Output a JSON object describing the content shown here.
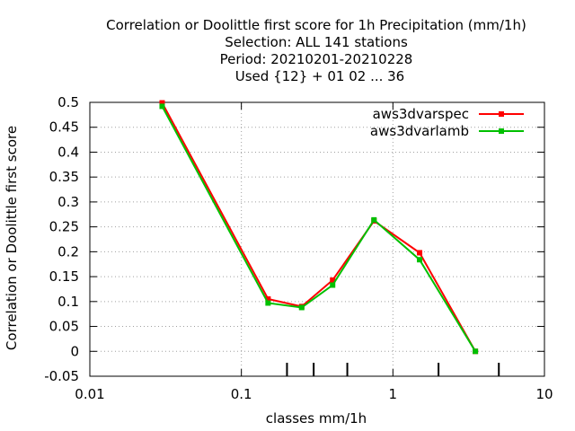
{
  "chart_data": {
    "type": "line",
    "title_lines": [
      "Correlation or Doolittle first score  for 1h Precipitation (mm/1h)",
      "Selection: ALL    141 stations",
      "Period: 20210201-20210228",
      "Used {12} + 01 02 ... 36"
    ],
    "xlabel": "classes mm/1h",
    "ylabel": "Correlation or Doolittle first score",
    "xscale": "log",
    "xlim": [
      0.01,
      10
    ],
    "ylim": [
      -0.05,
      0.5
    ],
    "x_ticks": [
      "0.01",
      "0.1",
      "1",
      "10"
    ],
    "x_tick_values": [
      0.01,
      0.1,
      1,
      10
    ],
    "x_minor_ticks": [
      0.2,
      0.3,
      0.5,
      2,
      5
    ],
    "y_ticks": [
      "-0.05",
      "0",
      "0.05",
      "0.1",
      "0.15",
      "0.2",
      "0.25",
      "0.3",
      "0.35",
      "0.4",
      "0.45",
      "0.5"
    ],
    "y_tick_values": [
      -0.05,
      0,
      0.05,
      0.1,
      0.15,
      0.2,
      0.25,
      0.3,
      0.35,
      0.4,
      0.45,
      0.5
    ],
    "grid": true,
    "legend_position": "top-right",
    "x": [
      0.03,
      0.15,
      0.25,
      0.4,
      0.75,
      1.5,
      3.5
    ],
    "series": [
      {
        "name": "aws3dvarspec",
        "color": "#ff0000",
        "values": [
          0.499,
          0.105,
          0.09,
          0.143,
          0.262,
          0.198,
          0.0
        ]
      },
      {
        "name": "aws3dvarlamb",
        "color": "#00c000",
        "values": [
          0.492,
          0.097,
          0.088,
          0.133,
          0.264,
          0.184,
          0.0
        ]
      }
    ]
  }
}
